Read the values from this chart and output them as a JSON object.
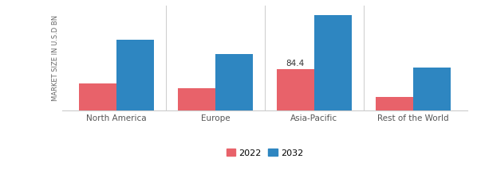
{
  "categories": [
    "North America",
    "Europe",
    "Asia-Pacific",
    "Rest of the World"
  ],
  "values_2022": [
    55,
    45,
    84.4,
    28
  ],
  "values_2032": [
    145,
    115,
    195,
    88
  ],
  "color_2022": "#e8626a",
  "color_2032": "#2e86c1",
  "ylabel": "MARKET SIZE IN U.S.D BN",
  "annotation_text": "84.4",
  "annotation_bar": 2,
  "bar_width": 0.38,
  "ylim": [
    0,
    215
  ],
  "legend_labels": [
    "2022",
    "2032"
  ],
  "background_color": "#ffffff",
  "separator_color": "#cccccc",
  "bottom_spine_color": "#cccccc"
}
